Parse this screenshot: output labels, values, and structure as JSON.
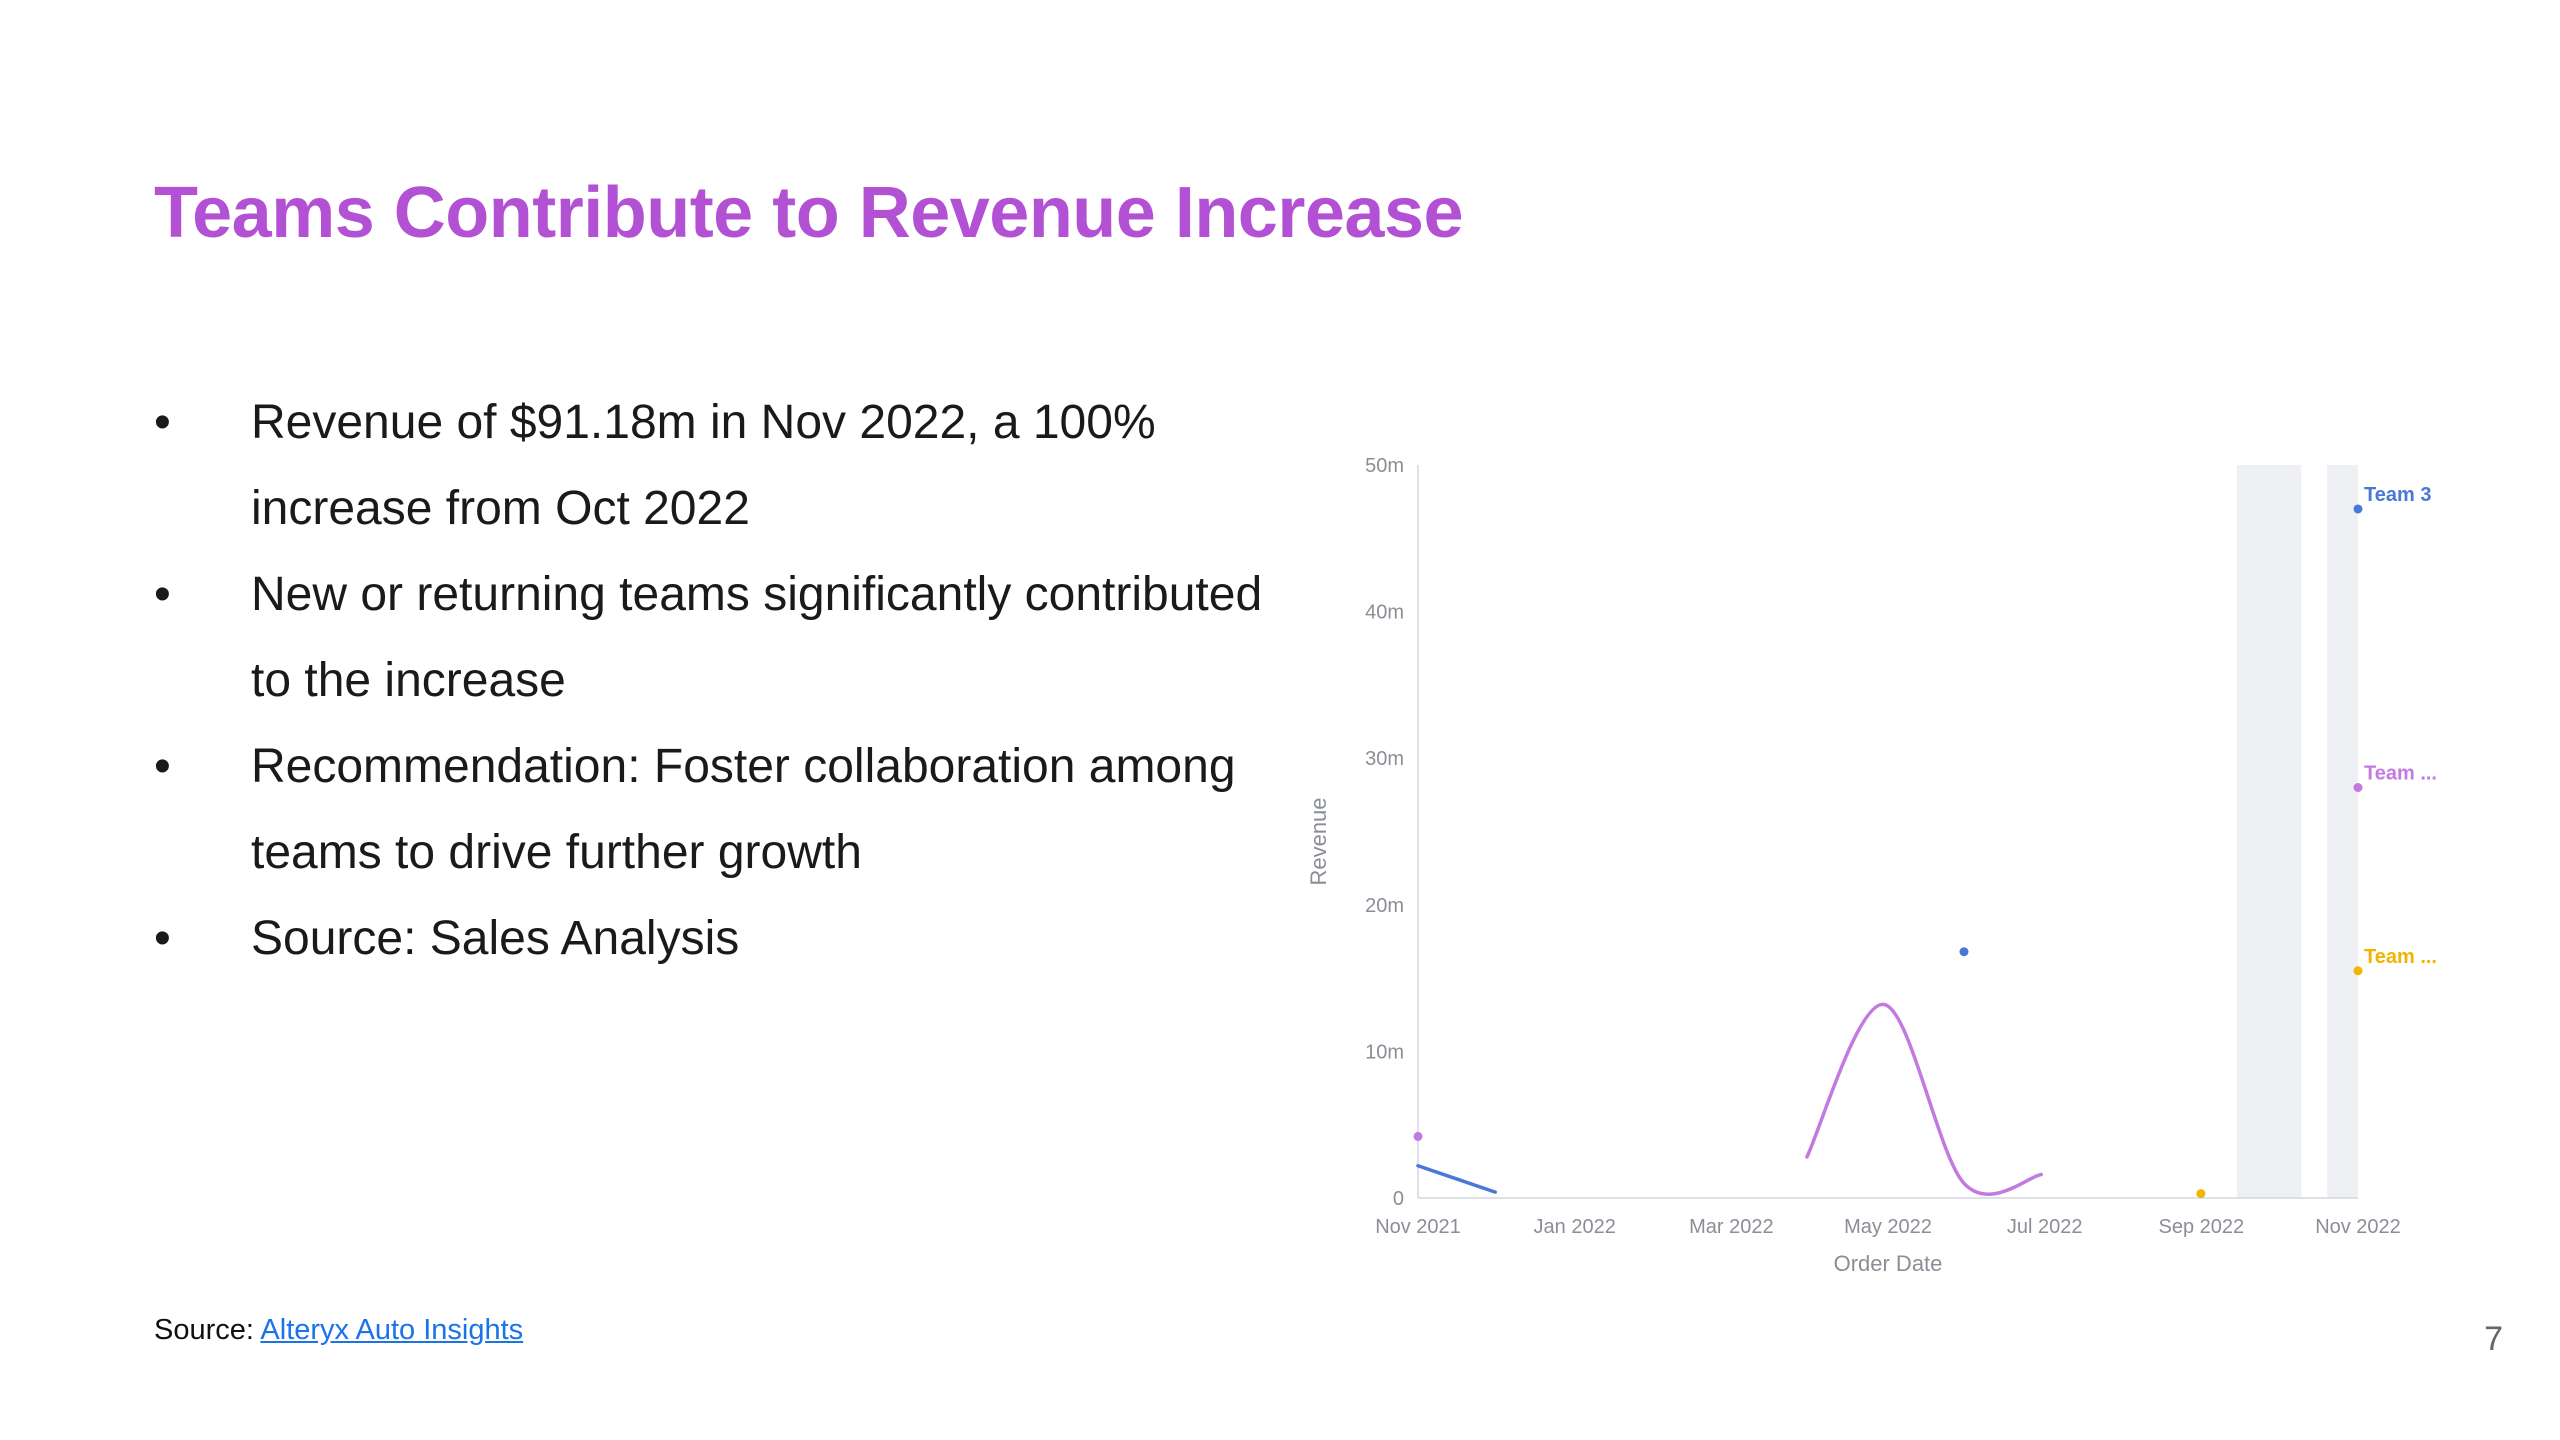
{
  "title": "Teams Contribute to Revenue Increase",
  "bullets": [
    "Revenue of $91.18m in Nov 2022, a 100% increase from Oct 2022",
    "New or returning teams significantly contributed to the increase",
    "Recommendation: Foster collaboration among teams to drive further growth",
    "Source: Sales Analysis"
  ],
  "bullet_glyph": "•",
  "source": {
    "prefix": "Source: ",
    "link_text": "Alteryx Auto Insights"
  },
  "page_number": "7",
  "colors": {
    "title": "#b351d4",
    "team3": "#4a78d6",
    "team_purple": "#c27ae0",
    "team_yellow": "#f2b400",
    "highlight": "#eef0f4"
  },
  "chart_data": {
    "type": "line",
    "xlabel": "Order Date",
    "ylabel": "Revenue",
    "ylim": [
      0,
      50
    ],
    "y_ticks": [
      {
        "value": 0,
        "label": "0"
      },
      {
        "value": 10,
        "label": "10m"
      },
      {
        "value": 20,
        "label": "20m"
      },
      {
        "value": 30,
        "label": "30m"
      },
      {
        "value": 40,
        "label": "40m"
      },
      {
        "value": 50,
        "label": "50m"
      }
    ],
    "x_ticks": [
      "Nov 2021",
      "Jan 2022",
      "Mar 2022",
      "May 2022",
      "Jul 2022",
      "Sep 2022",
      "Nov 2022"
    ],
    "x_range": [
      "2021-11-01",
      "2022-11-01"
    ],
    "highlight_periods": [
      [
        "2022-09-15",
        "2022-10-10"
      ],
      [
        "2022-10-20",
        "2022-11-01"
      ]
    ],
    "grid": false,
    "series": [
      {
        "name": "Team 3",
        "end_label": "Team 3",
        "color": "#4a78d6",
        "segments": [
          [
            [
              "2021-11-01",
              2.2
            ],
            [
              "2021-12-01",
              0.4
            ]
          ],
          [
            [
              "2022-06-01",
              16.8
            ]
          ],
          [
            [
              "2022-11-01",
              47.0
            ]
          ]
        ]
      },
      {
        "name": "Team ...",
        "end_label": "Team ...",
        "color": "#c27ae0",
        "segments": [
          [
            [
              "2021-11-01",
              4.2
            ]
          ],
          [
            [
              "2022-04-01",
              2.8
            ],
            [
              "2022-05-01",
              13.2
            ],
            [
              "2022-06-01",
              1.0
            ],
            [
              "2022-07-01",
              1.6
            ]
          ],
          [
            [
              "2022-11-01",
              28.0
            ]
          ]
        ]
      },
      {
        "name": "Team ...",
        "end_label": "Team ...",
        "color": "#f2b400",
        "segments": [
          [
            [
              "2022-09-01",
              0.3
            ]
          ],
          [
            [
              "2022-11-01",
              15.5
            ]
          ]
        ]
      }
    ]
  }
}
